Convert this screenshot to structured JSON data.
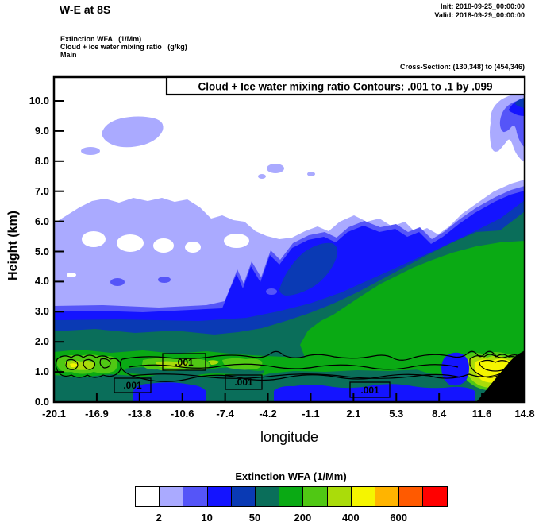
{
  "header": {
    "section_title": "W-E at 8S",
    "init_line": "Init: 2018-09-25_00:00:00",
    "valid_line": "Valid: 2018-09-29_00:00:00",
    "field_lines": [
      "Extinction WFA   (1/Mm)",
      "Cloud + ice water mixing ratio   (g/kg)",
      "Main"
    ],
    "cross_section": "Cross-Section: (130,348) to (454,346)"
  },
  "chart_data": {
    "type": "heatmap",
    "subtype": "filled-contour-vertical-cross-section",
    "title": "Cloud + Ice water mixing ratio Contours: .001 to .1 by .099",
    "xlabel": "longitude",
    "ylabel": "Height (km)",
    "xticks": [
      "-20.1",
      "-16.9",
      "-13.8",
      "-10.6",
      "-7.4",
      "-4.2",
      "-1.1",
      "2.1",
      "5.3",
      "8.4",
      "11.6",
      "14.8"
    ],
    "yticks": [
      "0.0",
      "1.0",
      "2.0",
      "3.0",
      "4.0",
      "5.0",
      "6.0",
      "7.0",
      "8.0",
      "9.0",
      "10.0"
    ],
    "xlim": [
      -20.1,
      14.8
    ],
    "ylim": [
      0,
      10.8
    ],
    "grid": false,
    "contour_labels": [
      ".001",
      ".001",
      ".001",
      ".001"
    ],
    "terrain_color": "#000000",
    "colorbar": {
      "title": "Extinction WFA  (1/Mm)",
      "colors": [
        "#ffffff",
        "#aaaaff",
        "#5555f8",
        "#1414ff",
        "#0a3ab4",
        "#0a6e5a",
        "#0aaa14",
        "#50c814",
        "#aadc0a",
        "#f5f500",
        "#ffb400",
        "#ff5a00",
        "#ff0000"
      ],
      "tick_labels": [
        "2",
        "10",
        "50",
        "200",
        "400",
        "600"
      ],
      "tick_boundary_indices": [
        1,
        3,
        5,
        7,
        9,
        11
      ]
    }
  }
}
